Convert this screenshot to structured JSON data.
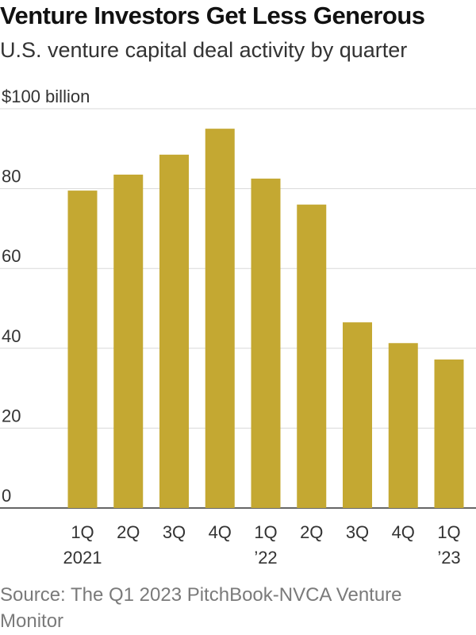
{
  "title": "Venture Investors Get Less Generous",
  "subtitle": "U.S. venture capital deal activity by quarter",
  "source": "Source: The Q1 2023 PitchBook-NVCA Venture Monitor",
  "colors": {
    "bar": "#c4a832",
    "grid": "#d9d9d9",
    "axis": "#333333"
  },
  "chart_data": {
    "type": "bar",
    "ylabel": "$100 billion",
    "ylim": [
      0,
      100
    ],
    "yticks": [
      {
        "value": 0,
        "label": "0"
      },
      {
        "value": 20,
        "label": "20"
      },
      {
        "value": 40,
        "label": "40"
      },
      {
        "value": 60,
        "label": "60"
      },
      {
        "value": 80,
        "label": "80"
      },
      {
        "value": 100,
        "label": "$100 billion"
      }
    ],
    "categories": [
      {
        "line1": "1Q",
        "line2": "2021"
      },
      {
        "line1": "2Q",
        "line2": ""
      },
      {
        "line1": "3Q",
        "line2": ""
      },
      {
        "line1": "4Q",
        "line2": ""
      },
      {
        "line1": "1Q",
        "line2": "’22"
      },
      {
        "line1": "2Q",
        "line2": ""
      },
      {
        "line1": "3Q",
        "line2": ""
      },
      {
        "line1": "4Q",
        "line2": ""
      },
      {
        "line1": "1Q",
        "line2": "’23"
      }
    ],
    "values": [
      79.5,
      83.5,
      88.5,
      95,
      82.5,
      76,
      46.5,
      41.3,
      37.2
    ]
  }
}
